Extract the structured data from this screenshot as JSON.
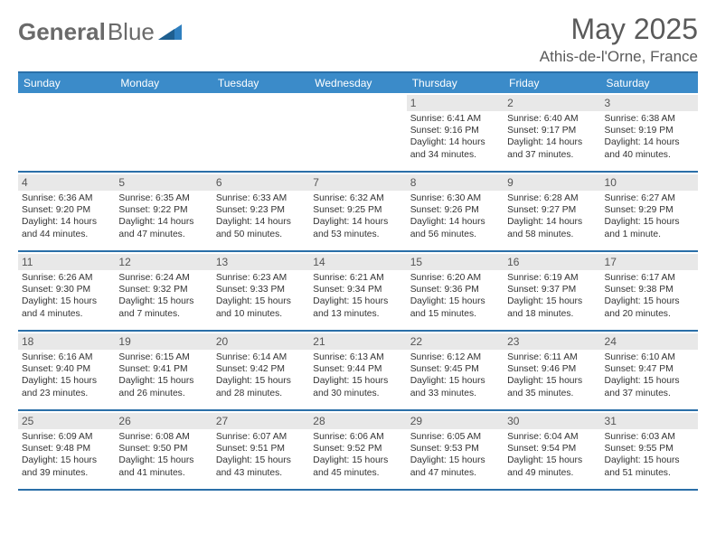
{
  "logo": {
    "text1": "General",
    "text2": "Blue"
  },
  "title": "May 2025",
  "location": "Athis-de-l'Orne, France",
  "colors": {
    "header_bg": "#3b8bc9",
    "header_text": "#ffffff",
    "border": "#2a6fa8",
    "daynum_bg": "#e8e8e8",
    "daynum_text": "#555555",
    "body_text": "#333333",
    "title_text": "#5a5a5a",
    "logo_gray": "#6a6a6a",
    "logo_blue": "#2f7fbf"
  },
  "typography": {
    "title_fontsize": 32,
    "location_fontsize": 17,
    "dow_fontsize": 12,
    "daynum_fontsize": 12,
    "body_fontsize": 10.3,
    "logo_fontsize": 26
  },
  "days_of_week": [
    "Sunday",
    "Monday",
    "Tuesday",
    "Wednesday",
    "Thursday",
    "Friday",
    "Saturday"
  ],
  "weeks": [
    [
      null,
      null,
      null,
      null,
      {
        "n": "1",
        "sr": "Sunrise: 6:41 AM",
        "ss": "Sunset: 9:16 PM",
        "dl": "Daylight: 14 hours and 34 minutes."
      },
      {
        "n": "2",
        "sr": "Sunrise: 6:40 AM",
        "ss": "Sunset: 9:17 PM",
        "dl": "Daylight: 14 hours and 37 minutes."
      },
      {
        "n": "3",
        "sr": "Sunrise: 6:38 AM",
        "ss": "Sunset: 9:19 PM",
        "dl": "Daylight: 14 hours and 40 minutes."
      }
    ],
    [
      {
        "n": "4",
        "sr": "Sunrise: 6:36 AM",
        "ss": "Sunset: 9:20 PM",
        "dl": "Daylight: 14 hours and 44 minutes."
      },
      {
        "n": "5",
        "sr": "Sunrise: 6:35 AM",
        "ss": "Sunset: 9:22 PM",
        "dl": "Daylight: 14 hours and 47 minutes."
      },
      {
        "n": "6",
        "sr": "Sunrise: 6:33 AM",
        "ss": "Sunset: 9:23 PM",
        "dl": "Daylight: 14 hours and 50 minutes."
      },
      {
        "n": "7",
        "sr": "Sunrise: 6:32 AM",
        "ss": "Sunset: 9:25 PM",
        "dl": "Daylight: 14 hours and 53 minutes."
      },
      {
        "n": "8",
        "sr": "Sunrise: 6:30 AM",
        "ss": "Sunset: 9:26 PM",
        "dl": "Daylight: 14 hours and 56 minutes."
      },
      {
        "n": "9",
        "sr": "Sunrise: 6:28 AM",
        "ss": "Sunset: 9:27 PM",
        "dl": "Daylight: 14 hours and 58 minutes."
      },
      {
        "n": "10",
        "sr": "Sunrise: 6:27 AM",
        "ss": "Sunset: 9:29 PM",
        "dl": "Daylight: 15 hours and 1 minute."
      }
    ],
    [
      {
        "n": "11",
        "sr": "Sunrise: 6:26 AM",
        "ss": "Sunset: 9:30 PM",
        "dl": "Daylight: 15 hours and 4 minutes."
      },
      {
        "n": "12",
        "sr": "Sunrise: 6:24 AM",
        "ss": "Sunset: 9:32 PM",
        "dl": "Daylight: 15 hours and 7 minutes."
      },
      {
        "n": "13",
        "sr": "Sunrise: 6:23 AM",
        "ss": "Sunset: 9:33 PM",
        "dl": "Daylight: 15 hours and 10 minutes."
      },
      {
        "n": "14",
        "sr": "Sunrise: 6:21 AM",
        "ss": "Sunset: 9:34 PM",
        "dl": "Daylight: 15 hours and 13 minutes."
      },
      {
        "n": "15",
        "sr": "Sunrise: 6:20 AM",
        "ss": "Sunset: 9:36 PM",
        "dl": "Daylight: 15 hours and 15 minutes."
      },
      {
        "n": "16",
        "sr": "Sunrise: 6:19 AM",
        "ss": "Sunset: 9:37 PM",
        "dl": "Daylight: 15 hours and 18 minutes."
      },
      {
        "n": "17",
        "sr": "Sunrise: 6:17 AM",
        "ss": "Sunset: 9:38 PM",
        "dl": "Daylight: 15 hours and 20 minutes."
      }
    ],
    [
      {
        "n": "18",
        "sr": "Sunrise: 6:16 AM",
        "ss": "Sunset: 9:40 PM",
        "dl": "Daylight: 15 hours and 23 minutes."
      },
      {
        "n": "19",
        "sr": "Sunrise: 6:15 AM",
        "ss": "Sunset: 9:41 PM",
        "dl": "Daylight: 15 hours and 26 minutes."
      },
      {
        "n": "20",
        "sr": "Sunrise: 6:14 AM",
        "ss": "Sunset: 9:42 PM",
        "dl": "Daylight: 15 hours and 28 minutes."
      },
      {
        "n": "21",
        "sr": "Sunrise: 6:13 AM",
        "ss": "Sunset: 9:44 PM",
        "dl": "Daylight: 15 hours and 30 minutes."
      },
      {
        "n": "22",
        "sr": "Sunrise: 6:12 AM",
        "ss": "Sunset: 9:45 PM",
        "dl": "Daylight: 15 hours and 33 minutes."
      },
      {
        "n": "23",
        "sr": "Sunrise: 6:11 AM",
        "ss": "Sunset: 9:46 PM",
        "dl": "Daylight: 15 hours and 35 minutes."
      },
      {
        "n": "24",
        "sr": "Sunrise: 6:10 AM",
        "ss": "Sunset: 9:47 PM",
        "dl": "Daylight: 15 hours and 37 minutes."
      }
    ],
    [
      {
        "n": "25",
        "sr": "Sunrise: 6:09 AM",
        "ss": "Sunset: 9:48 PM",
        "dl": "Daylight: 15 hours and 39 minutes."
      },
      {
        "n": "26",
        "sr": "Sunrise: 6:08 AM",
        "ss": "Sunset: 9:50 PM",
        "dl": "Daylight: 15 hours and 41 minutes."
      },
      {
        "n": "27",
        "sr": "Sunrise: 6:07 AM",
        "ss": "Sunset: 9:51 PM",
        "dl": "Daylight: 15 hours and 43 minutes."
      },
      {
        "n": "28",
        "sr": "Sunrise: 6:06 AM",
        "ss": "Sunset: 9:52 PM",
        "dl": "Daylight: 15 hours and 45 minutes."
      },
      {
        "n": "29",
        "sr": "Sunrise: 6:05 AM",
        "ss": "Sunset: 9:53 PM",
        "dl": "Daylight: 15 hours and 47 minutes."
      },
      {
        "n": "30",
        "sr": "Sunrise: 6:04 AM",
        "ss": "Sunset: 9:54 PM",
        "dl": "Daylight: 15 hours and 49 minutes."
      },
      {
        "n": "31",
        "sr": "Sunrise: 6:03 AM",
        "ss": "Sunset: 9:55 PM",
        "dl": "Daylight: 15 hours and 51 minutes."
      }
    ]
  ]
}
